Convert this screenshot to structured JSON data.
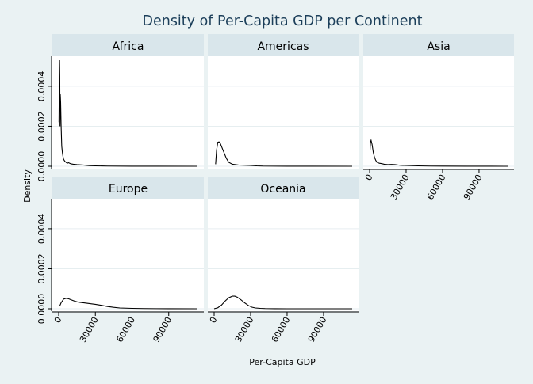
{
  "chart_data": {
    "type": "line",
    "title": "Density of Per-Capita GDP per Continent",
    "xlabel": "Per-Capita GDP",
    "ylabel": "Density",
    "xlim": [
      0,
      113523
    ],
    "ylim": [
      0,
      0.00055
    ],
    "x_ticks": [
      "0",
      "30000",
      "60000",
      "90000"
    ],
    "x_tick_values": [
      0,
      30000,
      60000,
      90000
    ],
    "y_ticks": [
      "0.0000",
      "0.0002",
      "0.0004"
    ],
    "y_tick_values": [
      0,
      0.0002,
      0.0004
    ],
    "grid": true,
    "panels": [
      {
        "name": "Africa",
        "x": [
          241,
          500,
          700,
          900,
          1100,
          1300,
          1600,
          2000,
          2500,
          3000,
          3500,
          4000,
          5000,
          6000,
          7000,
          8000,
          10000,
          12000,
          15000,
          20000,
          25000,
          30000,
          40000,
          60000,
          80000,
          113523
        ],
        "y": [
          0.00022,
          0.0004,
          0.00053,
          0.00045,
          0.0002,
          0.00036,
          0.00032,
          0.0002,
          0.0001,
          7e-05,
          5e-05,
          3.5e-05,
          2.5e-05,
          2e-05,
          1.5e-05,
          1.8e-05,
          1.2e-05,
          1e-05,
          8e-06,
          6e-06,
          3e-06,
          2e-06,
          1e-06,
          3e-07,
          1e-07,
          0
        ]
      },
      {
        "name": "Americas",
        "x": [
          1200,
          2000,
          3000,
          4000,
          5000,
          6000,
          7000,
          8000,
          10000,
          12000,
          15000,
          20000,
          25000,
          30000,
          35000,
          40000,
          50000,
          60000,
          80000,
          113523
        ],
        "y": [
          1e-05,
          8e-05,
          0.00012,
          0.000122,
          0.000115,
          0.0001,
          8.5e-05,
          7e-05,
          4e-05,
          2e-05,
          1e-05,
          6e-06,
          5e-06,
          4e-06,
          2e-06,
          1e-06,
          5e-07,
          2e-07,
          1e-07,
          0
        ]
      },
      {
        "name": "Asia",
        "x": [
          331,
          700,
          1200,
          2000,
          3000,
          4000,
          5000,
          6000,
          8000,
          10000,
          12000,
          15000,
          18000,
          21000,
          25000,
          30000,
          35000,
          40000,
          50000,
          60000,
          80000,
          100000,
          113523
        ],
        "y": [
          8e-05,
          0.00012,
          0.00013,
          0.00011,
          7e-05,
          4.5e-05,
          3e-05,
          2e-05,
          1.5e-05,
          1.3e-05,
          1e-05,
          8e-06,
          9e-06,
          8e-06,
          5e-06,
          4e-06,
          3e-06,
          2e-06,
          1e-06,
          6e-07,
          4e-07,
          2e-07,
          0
        ]
      },
      {
        "name": "Europe",
        "x": [
          973,
          2000,
          4000,
          6000,
          8000,
          10000,
          13000,
          16000,
          20000,
          25000,
          30000,
          35000,
          40000,
          45000,
          50000,
          60000,
          70000,
          80000,
          90000,
          113523
        ],
        "y": [
          1.5e-05,
          3e-05,
          4.8e-05,
          5.2e-05,
          5e-05,
          4.5e-05,
          3.8e-05,
          3.3e-05,
          3e-05,
          2.6e-05,
          2.2e-05,
          1.7e-05,
          1.1e-05,
          7e-06,
          4e-06,
          2e-06,
          1e-06,
          5e-07,
          2e-07,
          0
        ]
      },
      {
        "name": "Oceania",
        "x": [
          0,
          3000,
          6000,
          9000,
          12000,
          15000,
          17000,
          19000,
          22000,
          25000,
          28000,
          31000,
          34000,
          38000,
          42000,
          50000,
          60000,
          113523
        ],
        "y": [
          0,
          5e-06,
          1.8e-05,
          3.8e-05,
          5.5e-05,
          6.3e-05,
          6.3e-05,
          5.8e-05,
          4.5e-05,
          3e-05,
          1.7e-05,
          8e-06,
          4e-06,
          2e-06,
          1e-06,
          3e-07,
          0,
          0
        ]
      }
    ]
  }
}
